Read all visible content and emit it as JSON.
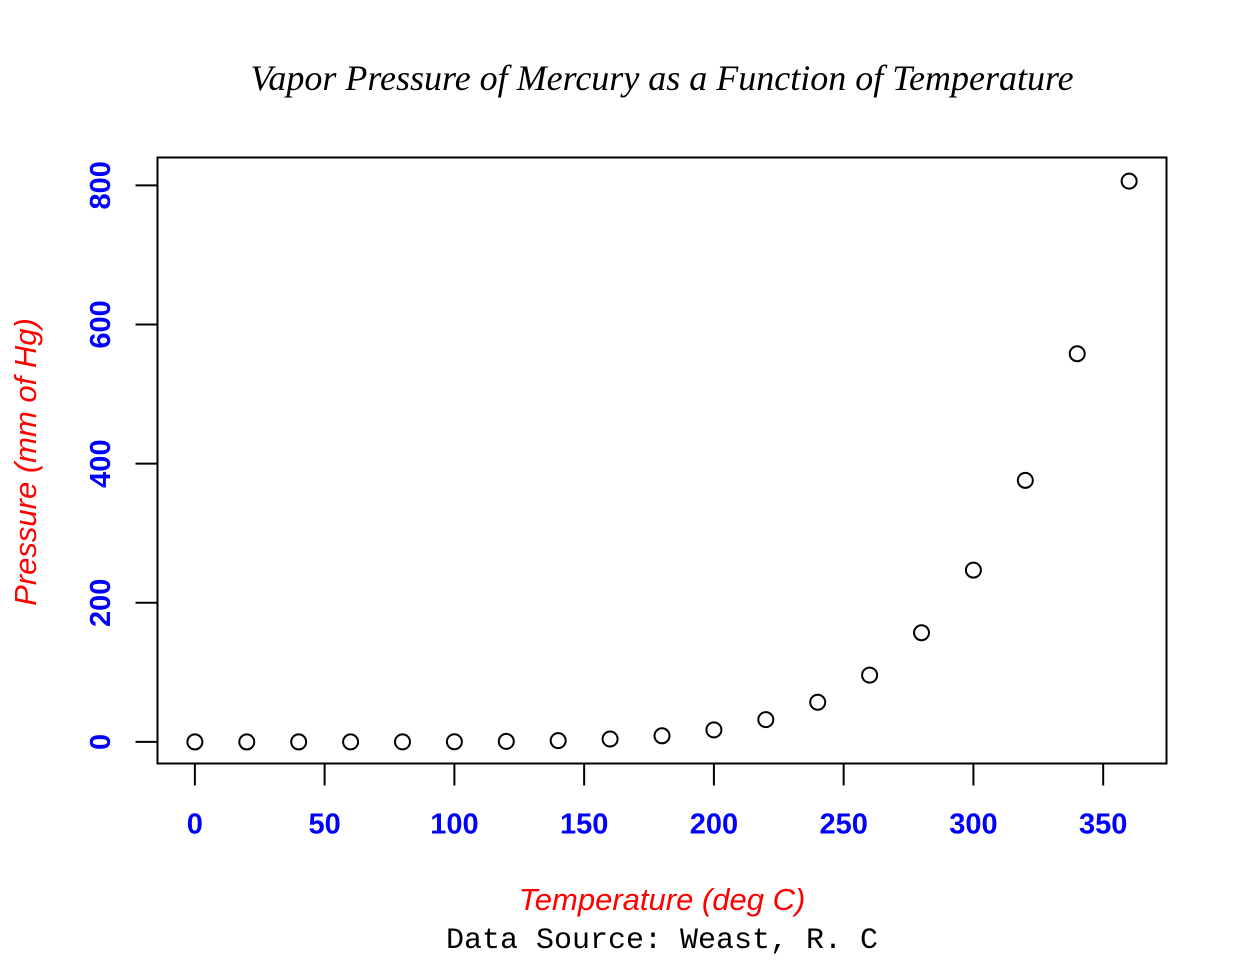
{
  "chart_data": {
    "type": "scatter",
    "title": "Vapor Pressure of Mercury as a Function of Temperature",
    "xlabel": "Temperature (deg C)",
    "ylabel": "Pressure (mm of Hg)",
    "caption": "Data Source: Weast, R. C",
    "xlim": [
      -14.4,
      374.4
    ],
    "ylim": [
      -31.0,
      840.0
    ],
    "xticks": [
      0,
      50,
      100,
      150,
      200,
      250,
      300,
      350
    ],
    "yticks": [
      0,
      200,
      400,
      600,
      800
    ],
    "grid": false,
    "legend": "none",
    "colors": {
      "title": "#000000",
      "axis_label": "#ff0000",
      "tick_label": "#0000ff",
      "points": "#000000",
      "caption": "#000000"
    },
    "x": [
      0,
      20,
      40,
      60,
      80,
      100,
      120,
      140,
      160,
      180,
      200,
      220,
      240,
      260,
      280,
      300,
      320,
      340,
      360
    ],
    "y": [
      0.0002,
      0.0012,
      0.006,
      0.03,
      0.09,
      0.27,
      0.75,
      1.85,
      4.2,
      8.8,
      17.3,
      32.1,
      57,
      96,
      157,
      247,
      376,
      558,
      806
    ]
  }
}
